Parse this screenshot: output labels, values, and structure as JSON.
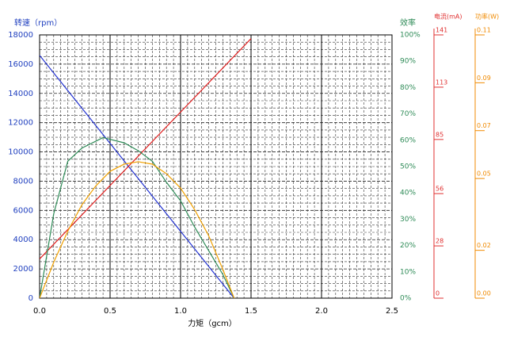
{
  "chart_data": {
    "type": "line",
    "y_title": "转速（rpm）",
    "y2_title": "效率",
    "y3_title": "电流(mA)",
    "y4_title": "功率(W)",
    "x_title": "力矩（gcm）",
    "xlim": [
      0,
      2.5
    ],
    "xticks": [
      {
        "value": 0,
        "label": "0.0"
      },
      {
        "value": 0.5,
        "label": "0.5"
      },
      {
        "value": 1,
        "label": "1.0"
      },
      {
        "value": 1.5,
        "label": "1.5"
      },
      {
        "value": 2,
        "label": "2.0"
      },
      {
        "value": 2.5,
        "label": "2.5"
      }
    ],
    "ylim": [
      0,
      18000
    ],
    "yticks": [
      0,
      2000,
      4000,
      6000,
      8000,
      10000,
      12000,
      14000,
      16000,
      18000
    ],
    "y2lim": [
      0,
      100
    ],
    "y2ticks": [
      {
        "value": 0,
        "label": "0%"
      },
      {
        "value": 10,
        "label": "10%"
      },
      {
        "value": 20,
        "label": "20%"
      },
      {
        "value": 30,
        "label": "30%"
      },
      {
        "value": 40,
        "label": "40%"
      },
      {
        "value": 50,
        "label": "50%"
      },
      {
        "value": 60,
        "label": "60%"
      },
      {
        "value": 70,
        "label": "70%"
      },
      {
        "value": 80,
        "label": "80%"
      },
      {
        "value": 90,
        "label": "90%"
      },
      {
        "value": 100,
        "label": "100%"
      }
    ],
    "y3lim": [
      0,
      141
    ],
    "y3ticks": [
      0,
      28,
      56,
      85,
      113,
      141
    ],
    "y4lim": [
      0,
      0.11
    ],
    "y4ticks": [
      {
        "value": 0,
        "label": "0.00"
      },
      {
        "value": 0.02,
        "label": "0.02"
      },
      {
        "value": 0.05,
        "label": "0.05"
      },
      {
        "value": 0.07,
        "label": "0.07"
      },
      {
        "value": 0.09,
        "label": "0.09"
      },
      {
        "value": 0.11,
        "label": "0.11"
      }
    ],
    "grid": true,
    "axis_colors": {
      "y": "#1f3fbf",
      "y2": "#2e8b57",
      "y3": "#e03030",
      "y4": "#f08a00"
    },
    "series": [
      {
        "color": "#2030d0",
        "axis": "y",
        "x": [
          0,
          1.38
        ],
        "values": [
          16600,
          0
        ]
      },
      {
        "color": "#e02020",
        "axis": "y3",
        "x": [
          0,
          1.5
        ],
        "values": [
          21,
          139
        ]
      },
      {
        "color": "#2e8b57",
        "axis": "y2",
        "x": [
          0,
          0.1,
          0.2,
          0.3,
          0.45,
          0.6,
          0.7,
          0.8,
          0.9,
          1.0,
          1.1,
          1.2,
          1.3,
          1.38
        ],
        "values": [
          0,
          32,
          52,
          57,
          61,
          59,
          56,
          52,
          44,
          37,
          27,
          18,
          9,
          0
        ]
      },
      {
        "color": "#f0a000",
        "axis": "y4",
        "x": [
          0,
          0.1,
          0.2,
          0.3,
          0.4,
          0.5,
          0.6,
          0.7,
          0.8,
          0.9,
          1.0,
          1.1,
          1.2,
          1.3,
          1.38
        ],
        "values": [
          0,
          0.015,
          0.028,
          0.039,
          0.047,
          0.053,
          0.056,
          0.057,
          0.056,
          0.052,
          0.046,
          0.037,
          0.026,
          0.012,
          0
        ]
      }
    ]
  }
}
